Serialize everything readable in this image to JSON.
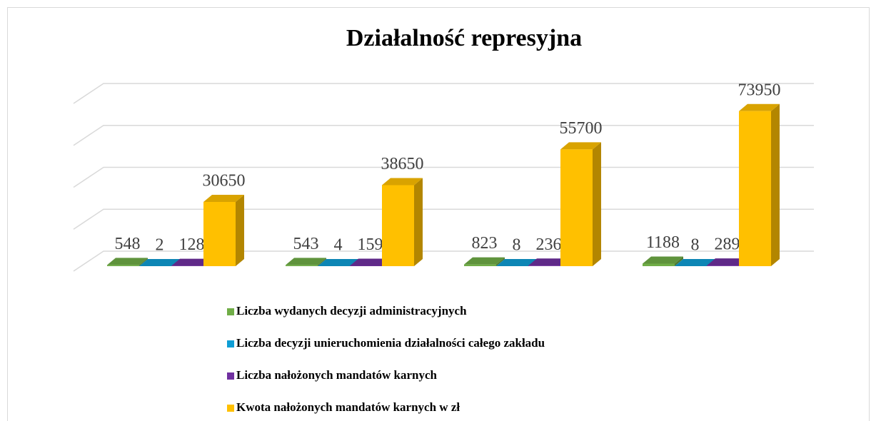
{
  "chart_data": {
    "type": "bar3d",
    "title": "Działalność represyjna",
    "categories": [
      null,
      null,
      null,
      null
    ],
    "series": [
      {
        "name": "Liczba wydanych decyzji administracyjnych",
        "color": "#70ad47",
        "values": [
          548,
          543,
          823,
          1188
        ]
      },
      {
        "name": "Liczba decyzji unieruchomienia działalności całego zakładu",
        "color": "#0f9ed5",
        "values": [
          2,
          4,
          8,
          8
        ]
      },
      {
        "name": "Liczba nałożonych mandatów karnych",
        "color": "#7030a0",
        "values": [
          128,
          159,
          236,
          289
        ]
      },
      {
        "name": "Kwota nałożonych mandatów karnych w zł",
        "color": "#ffc000",
        "values": [
          30650,
          38650,
          55700,
          73950
        ]
      }
    ],
    "ylim": [
      0,
      80000
    ],
    "yticks": [
      0,
      20000,
      40000,
      60000,
      80000
    ],
    "grid": true,
    "legend": "bottom"
  }
}
